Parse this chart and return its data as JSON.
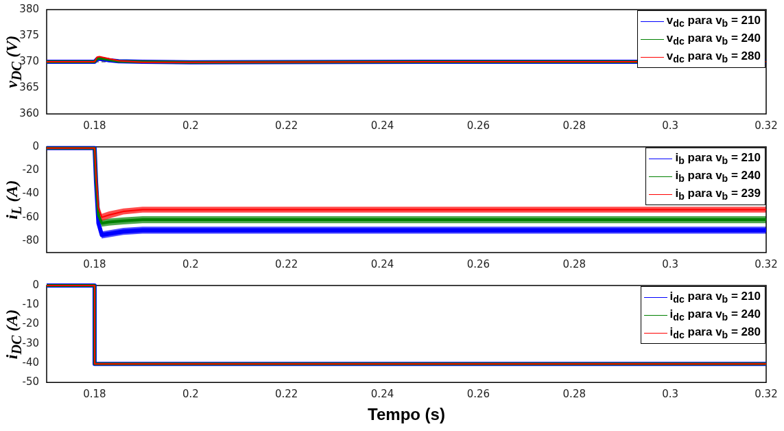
{
  "chart_data": [
    {
      "type": "line",
      "ylabel": "v$_{DC}$ (V)",
      "x": [
        0.17,
        0.18,
        0.1805,
        0.181,
        0.183,
        0.185,
        0.19,
        0.2,
        0.25,
        0.32
      ],
      "xlim": [
        0.17,
        0.32
      ],
      "xticks": [
        0.18,
        0.2,
        0.22,
        0.24,
        0.26,
        0.28,
        0.3,
        0.32
      ],
      "ylim": [
        360,
        380
      ],
      "yticks": [
        360,
        365,
        370,
        375,
        380
      ],
      "legend": "top right",
      "grid": false,
      "line_style": "solid",
      "marker": "none",
      "ref_lines": [
        {
          "axis": "y",
          "value": 370,
          "color": "#000000",
          "line_style": "dashed"
        }
      ],
      "series": [
        {
          "name": "v$_{dc}$  para v$_{b}$  = 210",
          "color": "#0000ff",
          "values": [
            370,
            370,
            370.5,
            370.6,
            370.3,
            370.1,
            370,
            369.9,
            370,
            370
          ]
        },
        {
          "name": "v$_{dc}$  para v$_{b}$  = 240",
          "color": "#008000",
          "values": [
            370,
            370,
            370.6,
            370.7,
            370.4,
            370.1,
            370,
            369.9,
            370,
            370
          ]
        },
        {
          "name": "v$_{dc}$  para v$_{b}$  = 280",
          "color": "#ff0000",
          "values": [
            370,
            370,
            370.9,
            371,
            370.6,
            370.2,
            369.9,
            369.9,
            370,
            370
          ]
        }
      ]
    },
    {
      "type": "line",
      "ylabel": "i$_{L}$ (A)",
      "x": [
        0.17,
        0.18,
        0.1803,
        0.1808,
        0.1815,
        0.183,
        0.186,
        0.19,
        0.2,
        0.32
      ],
      "xlim": [
        0.17,
        0.32
      ],
      "xticks": [
        0.18,
        0.2,
        0.22,
        0.24,
        0.26,
        0.28,
        0.3,
        0.32
      ],
      "ylim": [
        -90,
        0
      ],
      "yticks": [
        0,
        -20,
        -40,
        -60,
        -80
      ],
      "legend": "top right",
      "grid": false,
      "line_style": "solid",
      "marker": "none",
      "series": [
        {
          "name": "i$_{b}$  para v$_{b}$  = 210",
          "color": "#0000ff",
          "values": [
            -1,
            -1,
            -30,
            -65,
            -75,
            -74,
            -72,
            -71,
            -71,
            -71
          ],
          "lower": [
            -2,
            -2,
            -33,
            -68,
            -78,
            -77,
            -75,
            -74,
            -74,
            -74
          ],
          "upper": [
            0,
            0,
            -27,
            -62,
            -72,
            -71,
            -69,
            -68,
            -68,
            -68
          ]
        },
        {
          "name": "i$_{b}$  para v$_{b}$  = 240",
          "color": "#008000",
          "values": [
            -1,
            -1,
            -28,
            -58,
            -65,
            -64,
            -63,
            -62,
            -62,
            -62
          ],
          "lower": [
            -2,
            -2,
            -31,
            -61,
            -68,
            -67,
            -66,
            -65,
            -65,
            -65
          ],
          "upper": [
            0,
            0,
            -25,
            -55,
            -62,
            -61,
            -60,
            -59,
            -59,
            -59
          ]
        },
        {
          "name": "i$_{b}$ para v$_{b}$ = 239",
          "color": "#ff0000",
          "values": [
            -1,
            -1,
            -25,
            -52,
            -60,
            -58,
            -55,
            -53.5,
            -53.5,
            -53.5
          ],
          "lower": [
            -2,
            -2,
            -28,
            -55,
            -63,
            -61,
            -57.5,
            -56,
            -56,
            -56
          ],
          "upper": [
            0,
            0,
            -22,
            -49,
            -57,
            -55,
            -52.5,
            -51,
            -51,
            -51
          ]
        }
      ]
    },
    {
      "type": "line",
      "ylabel": "i$_{DC}$ (A)",
      "xlabel": "Tempo (s)",
      "x": [
        0.17,
        0.18,
        0.18,
        0.32
      ],
      "xlim": [
        0.17,
        0.32
      ],
      "xticks": [
        0.18,
        0.2,
        0.22,
        0.24,
        0.26,
        0.28,
        0.3,
        0.32
      ],
      "ylim": [
        -50,
        0
      ],
      "yticks": [
        -50,
        -40,
        -30,
        -20,
        -10,
        0
      ],
      "legend": "top right",
      "grid": false,
      "line_style": "solid",
      "marker": "none",
      "series": [
        {
          "name": "i$_{dc}$  para v$_{b}$  = 210",
          "color": "#0000ff",
          "values": [
            0,
            0,
            -40.5,
            -40.5
          ]
        },
        {
          "name": "i$_{dc}$  para v$_{b}$  = 240",
          "color": "#008000",
          "values": [
            0,
            0,
            -40.5,
            -40.5
          ]
        },
        {
          "name": "i$_{dc}$  para v$_{b}$  = 280",
          "color": "#ff0000",
          "values": [
            0,
            0,
            -40.5,
            -40.5
          ]
        }
      ]
    }
  ]
}
